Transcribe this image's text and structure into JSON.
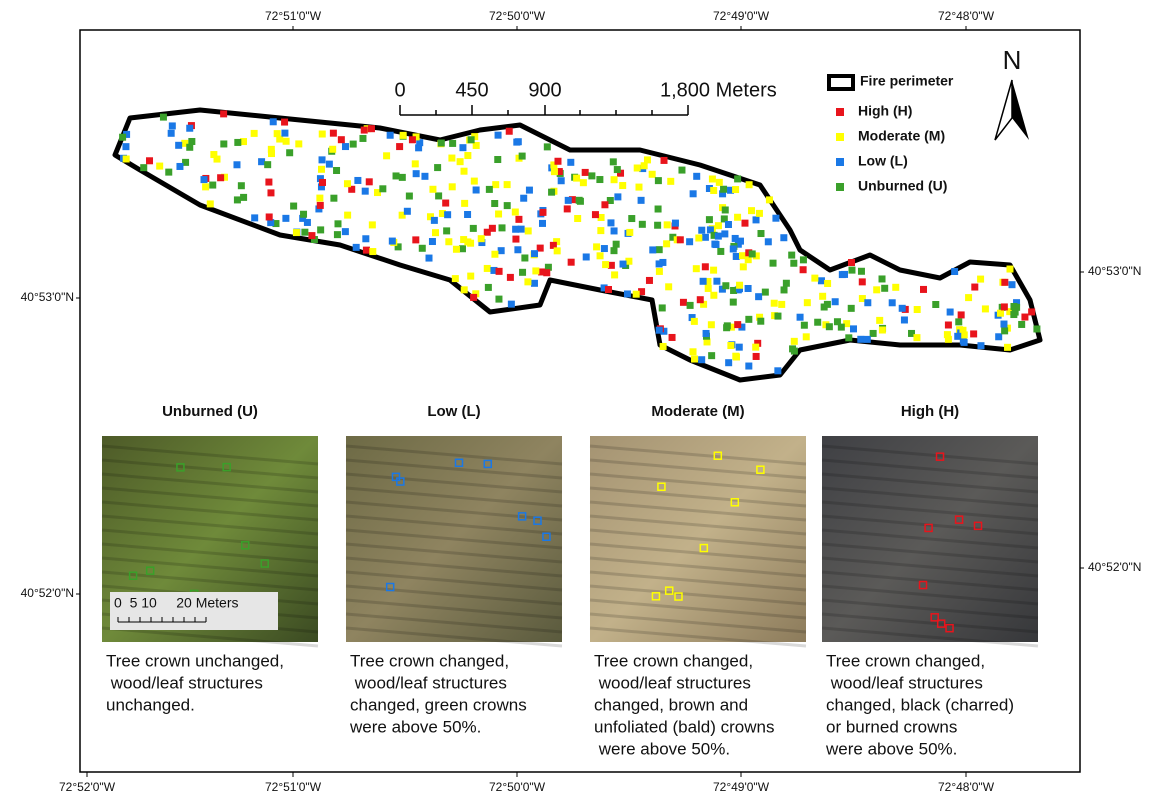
{
  "map": {
    "top_lon_labels": [
      "72°51'0\"W",
      "72°50'0\"W",
      "72°49'0\"W",
      "72°48'0\"W"
    ],
    "bottom_lon_labels": [
      "72°52'0\"W",
      "72°51'0\"W",
      "72°50'0\"W",
      "72°49'0\"W",
      "72°48'0\"W"
    ],
    "left_lat_labels": [
      "40°53'0\"N",
      "40°52'0\"N"
    ],
    "right_lat_labels": [
      "40°53'0\"N",
      "40°52'0\"N"
    ],
    "scale_bar": [
      "0",
      "450",
      "900",
      "1,800 Meters"
    ],
    "north": "N"
  },
  "legend": {
    "perimeter": "Fire perimeter",
    "items": [
      {
        "label": "High (H)",
        "color": "#e8141c"
      },
      {
        "label": "Moderate (M)",
        "color": "#ffff00"
      },
      {
        "label": "Low (L)",
        "color": "#1a78e6"
      },
      {
        "label": "Unburned (U)",
        "color": "#3aa02a"
      }
    ]
  },
  "panels": [
    {
      "title": "Unburned (U)",
      "caption": [
        "Tree crown unchanged,",
        " wood/leaf structures",
        "unchanged."
      ]
    },
    {
      "title": "Low (L)",
      "caption": [
        "Tree crown changed,",
        " wood/leaf structures",
        "changed, green crowns",
        "were above 50%."
      ]
    },
    {
      "title": "Moderate (M)",
      "caption": [
        "Tree crown changed,",
        " wood/leaf structures",
        "changed, brown and",
        "unfoliated (bald) crowns",
        " were above 50%."
      ]
    },
    {
      "title": "High (H)",
      "caption": [
        "Tree crown changed,",
        " wood/leaf structures",
        "changed, black (charred)",
        "or burned crowns",
        "were above 50%."
      ]
    }
  ],
  "inset_scale": "0  5 10     20 Meters"
}
